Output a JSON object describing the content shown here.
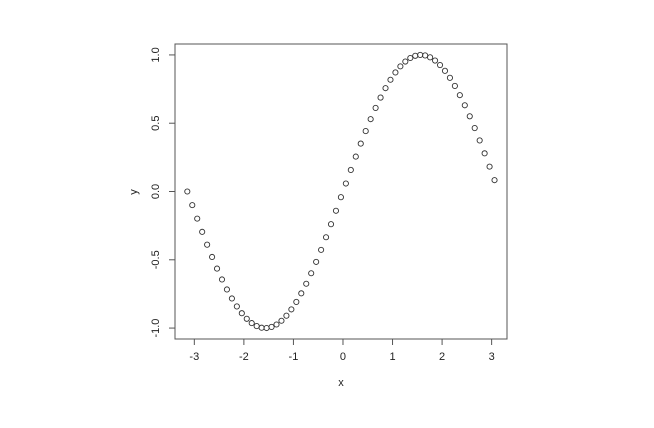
{
  "chart_data": {
    "type": "scatter",
    "title": "",
    "xlabel": "x",
    "ylabel": "y",
    "xlim": [
      -3.39,
      3.31
    ],
    "ylim": [
      -1.08,
      1.08
    ],
    "xticks": [
      "-3",
      "-2",
      "-1",
      "0",
      "1",
      "2",
      "3"
    ],
    "yticks": [
      "-1.0",
      "-0.5",
      "0.0",
      "0.5",
      "1.0"
    ],
    "grid": false,
    "marker": "open-circle",
    "marker_color": "#333333",
    "x": [
      -3.1416,
      -3.0416,
      -2.9416,
      -2.8416,
      -2.7416,
      -2.6416,
      -2.5416,
      -2.4416,
      -2.3416,
      -2.2416,
      -2.1416,
      -2.0416,
      -1.9416,
      -1.8416,
      -1.7416,
      -1.6416,
      -1.5416,
      -1.4416,
      -1.3416,
      -1.2416,
      -1.1416,
      -1.0416,
      -0.9416,
      -0.8416,
      -0.7416,
      -0.6416,
      -0.5416,
      -0.4416,
      -0.3416,
      -0.2416,
      -0.1416,
      -0.0416,
      0.0584,
      0.1584,
      0.2584,
      0.3584,
      0.4584,
      0.5584,
      0.6584,
      0.7584,
      0.8584,
      0.9584,
      1.0584,
      1.1584,
      1.2584,
      1.3584,
      1.4584,
      1.5584,
      1.6584,
      1.7584,
      1.8584,
      1.9584,
      2.0584,
      2.1584,
      2.2584,
      2.3584,
      2.4584,
      2.5584,
      2.6584,
      2.7584,
      2.8584,
      2.9584,
      3.0584
    ],
    "y": [
      0,
      -0.0998,
      -0.1987,
      -0.2955,
      -0.3894,
      -0.4794,
      -0.5646,
      -0.6442,
      -0.7174,
      -0.7833,
      -0.8415,
      -0.8912,
      -0.932,
      -0.9636,
      -0.9854,
      -0.9975,
      -0.9996,
      -0.9917,
      -0.9738,
      -0.9463,
      -0.9093,
      -0.8632,
      -0.8085,
      -0.7457,
      -0.6755,
      -0.5985,
      -0.5155,
      -0.4274,
      -0.335,
      -0.2392,
      -0.1411,
      -0.0416,
      0.0584,
      0.1577,
      0.2555,
      0.3508,
      0.4425,
      0.5298,
      0.6119,
      0.6878,
      0.7568,
      0.8183,
      0.8716,
      0.9162,
      0.9516,
      0.9775,
      0.9937,
      0.9999,
      0.9962,
      0.9825,
      0.9589,
      0.9258,
      0.8835,
      0.8323,
      0.7728,
      0.7055,
      0.6313,
      0.5507,
      0.4646,
      0.3739,
      0.2794,
      0.1822,
      0.0831
    ]
  }
}
